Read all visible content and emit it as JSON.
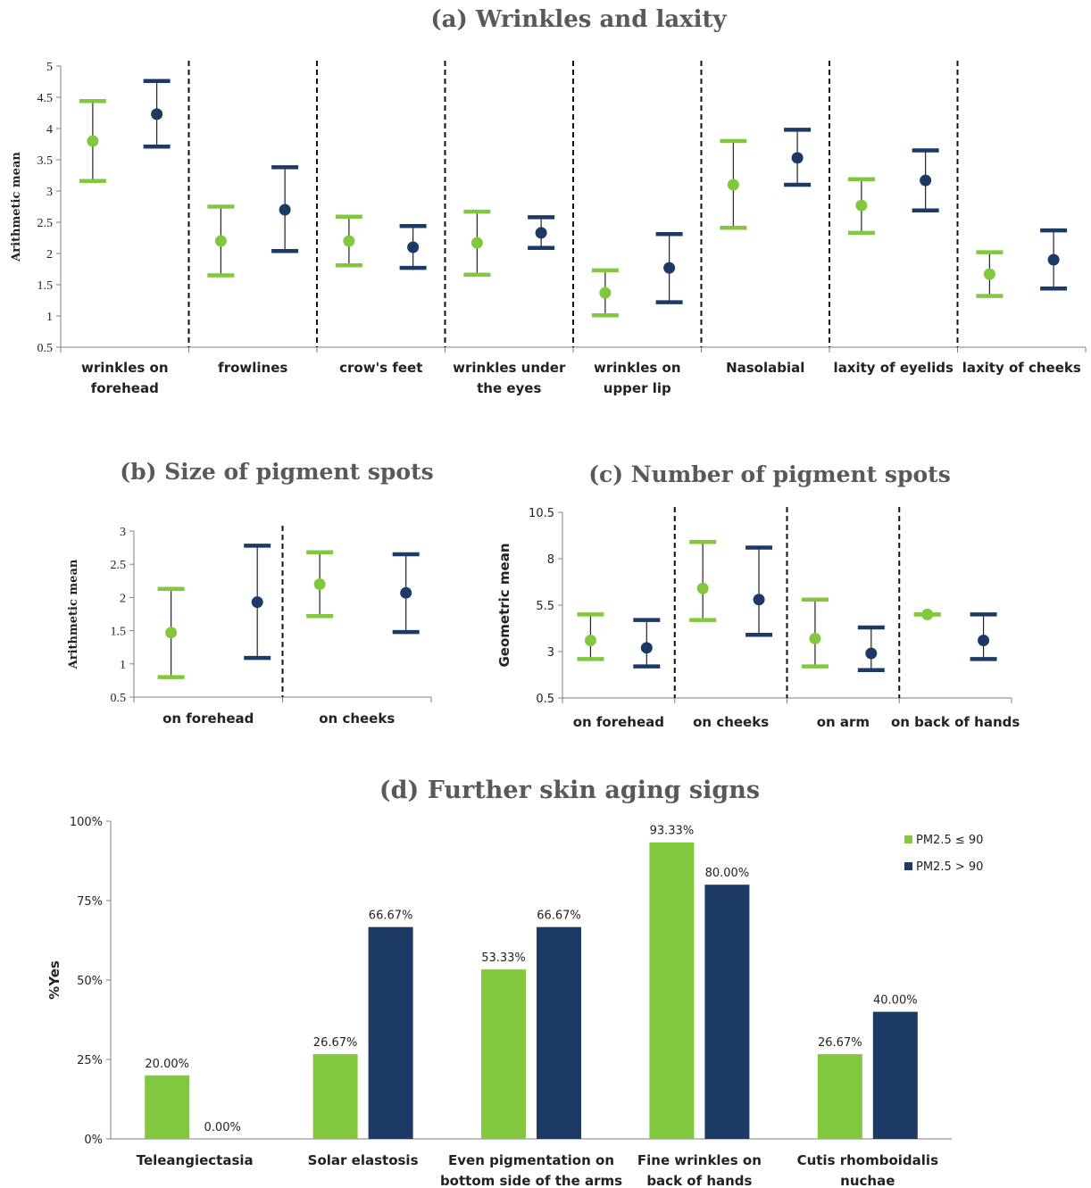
{
  "colors": {
    "low": "#82c83f",
    "high": "#1d3a66",
    "axis": "#7f7f7f"
  },
  "chart_data": [
    {
      "id": "a",
      "type": "errorbar",
      "title": "(a) Wrinkles and laxity",
      "ylabel": "Arithmetic mean",
      "ylim": [
        0.5,
        5
      ],
      "yticks": [
        "0.5",
        "1",
        "1.5",
        "2",
        "2.5",
        "3",
        "3.5",
        "4",
        "4.5",
        "5"
      ],
      "categories": [
        [
          "wrinkles on",
          "forehead"
        ],
        [
          "frowlines"
        ],
        [
          "crow's feet"
        ],
        [
          "wrinkles under",
          "the eyes"
        ],
        [
          "wrinkles on",
          "upper lip"
        ],
        [
          "Nasolabial"
        ],
        [
          "laxity of eyelids"
        ],
        [
          "laxity of cheeks"
        ]
      ],
      "series": [
        {
          "group": "low",
          "mean": [
            3.8,
            2.2,
            2.2,
            2.17,
            1.37,
            3.1,
            2.77,
            1.67
          ],
          "lo": [
            3.16,
            1.65,
            1.81,
            1.66,
            1.01,
            2.41,
            2.33,
            1.32
          ],
          "hi": [
            4.44,
            2.75,
            2.59,
            2.67,
            1.73,
            3.8,
            3.19,
            2.02
          ]
        },
        {
          "group": "high",
          "mean": [
            4.23,
            2.7,
            2.1,
            2.33,
            1.77,
            3.53,
            3.17,
            1.9
          ],
          "lo": [
            3.71,
            2.04,
            1.77,
            2.09,
            1.22,
            3.1,
            2.69,
            1.44
          ],
          "hi": [
            4.76,
            3.38,
            2.44,
            2.58,
            2.31,
            3.98,
            3.65,
            2.37
          ]
        }
      ]
    },
    {
      "id": "b",
      "type": "errorbar",
      "title": "(b) Size of pigment spots",
      "ylabel": "Arithmetic mean",
      "ylim": [
        0.5,
        3
      ],
      "yticks": [
        "0.5",
        "1",
        "1.5",
        "2",
        "2.5",
        "3"
      ],
      "categories": [
        [
          "on forehead"
        ],
        [
          "on cheeks"
        ]
      ],
      "series": [
        {
          "group": "low",
          "mean": [
            1.47,
            2.2
          ],
          "lo": [
            0.8,
            1.72
          ],
          "hi": [
            2.13,
            2.68
          ]
        },
        {
          "group": "high",
          "mean": [
            1.93,
            2.07
          ],
          "lo": [
            1.09,
            1.48
          ],
          "hi": [
            2.78,
            2.65
          ]
        }
      ]
    },
    {
      "id": "c",
      "type": "errorbar",
      "title": "(c) Number of pigment spots",
      "ylabel": "Geometric mean",
      "ylim": [
        0.5,
        10.5
      ],
      "yticks": [
        "0.5",
        "3",
        "5.5",
        "8",
        "10.5"
      ],
      "categories": [
        [
          "on forehead"
        ],
        [
          "on cheeks"
        ],
        [
          "on arm"
        ],
        [
          "on back of hands"
        ]
      ],
      "series": [
        {
          "group": "low",
          "mean": [
            3.6,
            6.4,
            3.7,
            5.0
          ],
          "lo": [
            2.6,
            4.7,
            2.2,
            5.0
          ],
          "hi": [
            5.0,
            8.9,
            5.8,
            5.0
          ]
        },
        {
          "group": "high",
          "mean": [
            3.2,
            5.8,
            2.9,
            3.6
          ],
          "lo": [
            2.2,
            3.9,
            2.0,
            2.6
          ],
          "hi": [
            4.7,
            8.6,
            4.3,
            5.0
          ]
        }
      ]
    },
    {
      "id": "d",
      "type": "bar",
      "title": "(d) Further skin aging signs",
      "ylabel": "%Yes",
      "ylim": [
        0,
        100
      ],
      "yticks": [
        "0%",
        "25%",
        "50%",
        "75%",
        "100%"
      ],
      "categories": [
        [
          "Teleangiectasia"
        ],
        [
          "Solar elastosis"
        ],
        [
          "Even pigmentation on",
          "bottom side of the arms"
        ],
        [
          "Fine wrinkles on",
          "back of hands"
        ],
        [
          "Cutis rhomboidalis",
          "nuchae"
        ]
      ],
      "series": [
        {
          "name": "PM2.5 ≤ 90",
          "group": "low",
          "values": [
            20.0,
            26.67,
            53.33,
            93.33,
            26.67
          ],
          "labels": [
            "20.00%",
            "26.67%",
            "53.33%",
            "93.33%",
            "26.67%"
          ]
        },
        {
          "name": "PM2.5 > 90",
          "group": "high",
          "values": [
            0.0,
            66.67,
            66.67,
            80.0,
            40.0
          ],
          "labels": [
            "0.00%",
            "66.67%",
            "66.67%",
            "80.00%",
            "40.00%"
          ]
        }
      ],
      "legend": "top-right"
    }
  ]
}
